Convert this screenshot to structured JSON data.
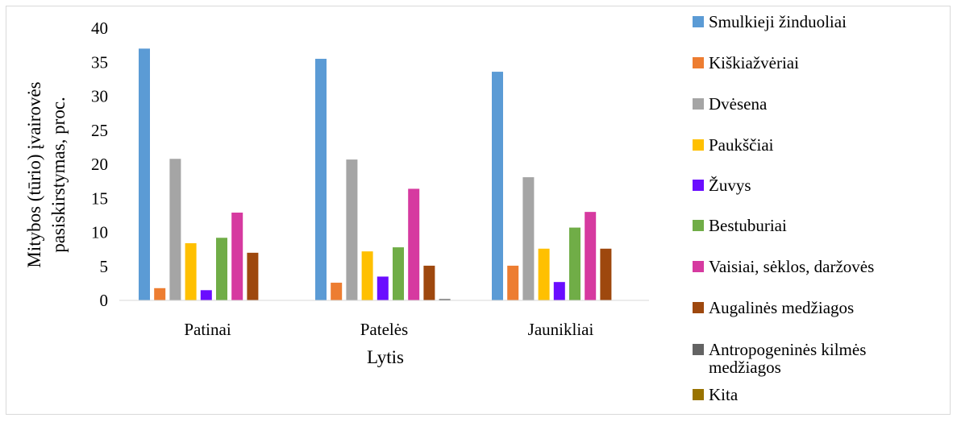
{
  "chart_data": {
    "type": "bar",
    "title": "",
    "xlabel": "Lytis",
    "ylabel": "Mitybos (tūrio) įvairovės pasiskirstymas, proc.",
    "ylabel_lines": [
      "Mitybos (tūrio) įvairovės",
      "pasiskirstymas, proc."
    ],
    "ylim": [
      0,
      40
    ],
    "yticks": [
      0,
      5,
      10,
      15,
      20,
      25,
      30,
      35,
      40
    ],
    "grid": false,
    "legend_position": "right",
    "categories": [
      "Patinai",
      "Patelės",
      "Jaunikliai"
    ],
    "series": [
      {
        "name": "Smulkieji žinduoliai",
        "color": "#5b9bd5",
        "values": [
          37.0,
          35.5,
          33.6
        ]
      },
      {
        "name": "Kiškiažvėriai",
        "color": "#ed7d31",
        "values": [
          1.8,
          2.6,
          5.1
        ]
      },
      {
        "name": "Dvėsena",
        "color": "#a5a5a5",
        "values": [
          20.8,
          20.7,
          18.1
        ]
      },
      {
        "name": "Paukščiai",
        "color": "#ffc000",
        "values": [
          8.4,
          7.2,
          7.6
        ]
      },
      {
        "name": "Žuvys",
        "color": "#6a0dff",
        "values": [
          1.5,
          3.5,
          2.7
        ]
      },
      {
        "name": "Bestuburiai",
        "color": "#70ad47",
        "values": [
          9.2,
          7.8,
          10.7
        ]
      },
      {
        "name": "Vaisiai, sėklos, daržovės",
        "color": "#d63aa0",
        "values": [
          12.9,
          16.4,
          13.0
        ]
      },
      {
        "name": "Augalinės medžiagos",
        "color": "#9e480e",
        "values": [
          7.0,
          5.1,
          7.6
        ]
      },
      {
        "name": "Antropogeninės kilmės medžiagos",
        "color": "#636363",
        "values": [
          0,
          0.2,
          0
        ]
      },
      {
        "name": "Kita",
        "color": "#997300",
        "values": [
          0,
          0,
          0
        ]
      }
    ]
  }
}
